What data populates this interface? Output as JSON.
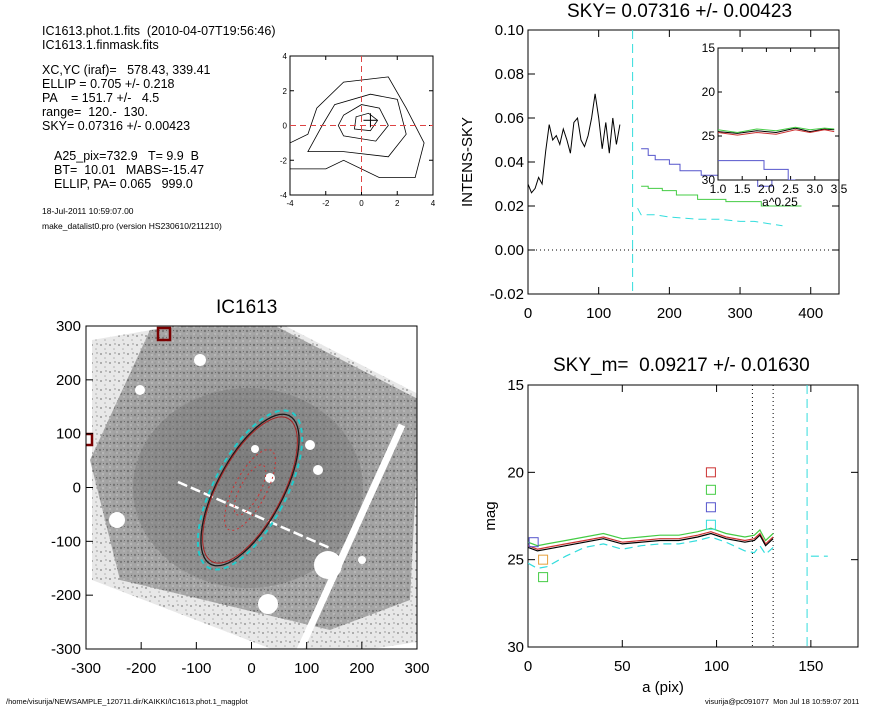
{
  "header": {
    "file_line": "IC1613.phot.1.fits  (2010-04-07T19:56:46)",
    "mask_line": "IC1613.1.finmask.fits",
    "params": [
      "XC,YC (iraf)=   578.43, 339.41",
      "ELLIP = 0.705 +/- 0.218",
      "PA    = 151.7 +/-   4.5",
      "range=  120.-  130.",
      "SKY= 0.07316 +/- 0.00423"
    ],
    "results": [
      "A25_pix=732.9   T= 9.9  B",
      "BT=  10.01   MABS=-15.47",
      "ELLIP, PA= 0.065   999.0"
    ],
    "date": "18-Jul-2011 10:59:07.00",
    "program": "make_datalist0.pro (version HS230610/211210)"
  },
  "footer": {
    "left": "/home/visurija/NEWSAMPLE_120711.dir/KAIKKI/IC1613.phot.1_magplot",
    "right": "visurija@pc091077  Mon Jul 18 10:59:07 2011"
  },
  "colors": {
    "cyan": "#33dddd",
    "green": "#44cc44",
    "blue": "#5555cc",
    "red": "#cc3333",
    "black": "#000000"
  },
  "chart_data": [
    {
      "id": "contour",
      "type": "contour",
      "xticks": [
        "-4",
        "-2",
        "0",
        "2",
        "4"
      ],
      "yticks": [
        "-4",
        "-2",
        "0",
        "2",
        "4"
      ],
      "xlim": [
        -4,
        4
      ],
      "ylim": [
        -4,
        4
      ],
      "contours": [
        [
          [
            -4,
            -2.5
          ],
          [
            -2,
            -2.5
          ],
          [
            -1,
            -2
          ],
          [
            1,
            -3
          ],
          [
            3,
            -3
          ],
          [
            3.5,
            -1
          ],
          [
            2.5,
            1
          ],
          [
            1.5,
            2.8
          ],
          [
            -1,
            2.5
          ],
          [
            -2.5,
            1
          ],
          [
            -3,
            -0.5
          ],
          [
            -4,
            -1
          ]
        ],
        [
          [
            -3,
            -1.5
          ],
          [
            -1,
            -1.5
          ],
          [
            1.5,
            -1.8
          ],
          [
            2.5,
            -0.5
          ],
          [
            2,
            1.5
          ],
          [
            0.5,
            1.8
          ],
          [
            -1.5,
            1.2
          ],
          [
            -2.2,
            0
          ]
        ],
        [
          [
            -1,
            -0.6
          ],
          [
            0.8,
            -0.9
          ],
          [
            1.5,
            0
          ],
          [
            1,
            1
          ],
          [
            0,
            1.2
          ],
          [
            -1,
            0.6
          ],
          [
            -1.3,
            0
          ]
        ],
        [
          [
            -0.4,
            -0.2
          ],
          [
            0.5,
            -0.3
          ],
          [
            0.9,
            0.3
          ],
          [
            0.4,
            0.7
          ],
          [
            -0.3,
            0.5
          ]
        ]
      ],
      "cross": [
        0.5,
        0.3
      ]
    },
    {
      "id": "sky-profile",
      "type": "line",
      "title": "SKY= 0.07316 +/- 0.00423",
      "ylabel": "INTENS-SKY",
      "xlim": [
        0,
        440
      ],
      "ylim": [
        -0.02,
        0.1
      ],
      "xticks": [
        "0",
        "100",
        "200",
        "300",
        "400"
      ],
      "yticks": [
        "-0.02",
        "0.00",
        "0.02",
        "0.04",
        "0.06",
        "0.08",
        "0.10"
      ],
      "series": [
        {
          "color": "black",
          "style": "solid",
          "x": [
            0,
            5,
            10,
            15,
            20,
            25,
            30,
            35,
            40,
            45,
            50,
            55,
            60,
            65,
            70,
            75,
            80,
            85,
            90,
            95,
            100,
            105,
            110,
            115,
            120,
            125,
            130
          ],
          "y": [
            0.03,
            0.026,
            0.028,
            0.033,
            0.03,
            0.045,
            0.057,
            0.05,
            0.052,
            0.048,
            0.055,
            0.05,
            0.044,
            0.058,
            0.06,
            0.05,
            0.047,
            0.052,
            0.06,
            0.071,
            0.06,
            0.046,
            0.058,
            0.044,
            0.06,
            0.048,
            0.057
          ]
        },
        {
          "color": "blue",
          "style": "step",
          "x": [
            160,
            170,
            180,
            200,
            215,
            245,
            280,
            325,
            345
          ],
          "y": [
            0.046,
            0.043,
            0.041,
            0.039,
            0.036,
            0.034,
            0.034,
            0.029,
            0.04
          ]
        },
        {
          "color": "green",
          "style": "step",
          "x": [
            160,
            170,
            190,
            210,
            240,
            280,
            320,
            330,
            370
          ],
          "y": [
            0.029,
            0.028,
            0.027,
            0.025,
            0.023,
            0.022,
            0.022,
            0.02,
            0.02
          ]
        },
        {
          "color": "cyan",
          "style": "dashed",
          "x": [
            155,
            160,
            180,
            200,
            240,
            270,
            300,
            320,
            340,
            360
          ],
          "y": [
            0.019,
            0.016,
            0.016,
            0.015,
            0.014,
            0.014,
            0.013,
            0.013,
            0.012,
            0.011
          ]
        }
      ],
      "sky_line": 0.0,
      "vline": 148,
      "inset": {
        "xlabel": "a^0.25",
        "xlim": [
          1.0,
          3.5
        ],
        "ylim": [
          15,
          30
        ],
        "xticks": [
          "1.0",
          "1.5",
          "2.0",
          "2.5",
          "3.0",
          "3.5"
        ],
        "yticks": [
          "15",
          "20",
          "25",
          "30"
        ],
        "series": [
          {
            "color": "black",
            "x": [
              1.0,
              1.4,
              1.8,
              2.2,
              2.6,
              2.9,
              3.2,
              3.4
            ],
            "y": [
              24.5,
              24.7,
              24.4,
              24.6,
              24.1,
              24.5,
              24.2,
              24.3
            ]
          },
          {
            "color": "red",
            "x": [
              1.0,
              1.4,
              1.8,
              2.2,
              2.6,
              2.9,
              3.2,
              3.4
            ],
            "y": [
              24.6,
              24.9,
              24.6,
              24.8,
              24.3,
              24.6,
              24.3,
              24.5
            ]
          },
          {
            "color": "green",
            "x": [
              1.0,
              1.4,
              1.8,
              2.2,
              2.6,
              2.9,
              3.2,
              3.4
            ],
            "y": [
              24.3,
              24.6,
              24.2,
              24.4,
              24.0,
              24.3,
              24.1,
              24.2
            ]
          },
          {
            "color": "blue",
            "x": [
              1.0,
              1.65,
              1.65,
              1.95,
              1.95,
              2.45,
              2.45,
              2.6
            ],
            "y": [
              27.8,
              27.8,
              27.8,
              27.8,
              28.8,
              28.8,
              30.0,
              30.0
            ]
          }
        ]
      }
    },
    {
      "id": "galaxy-image",
      "type": "image",
      "title": "IC1613",
      "xlim": [
        -300,
        300
      ],
      "ylim": [
        -300,
        300
      ],
      "xticks": [
        "-300",
        "-200",
        "-100",
        "0",
        "100",
        "200",
        "300"
      ],
      "yticks": [
        "-300",
        "-200",
        "-100",
        "0",
        "100",
        "200",
        "300"
      ]
    },
    {
      "id": "mag-profile",
      "type": "line",
      "title": "SKY_m=  0.09217 +/- 0.01630",
      "xlabel": "a (pix)",
      "ylabel": "mag",
      "xlim": [
        0,
        175
      ],
      "ylim": [
        30,
        15
      ],
      "xticks": [
        "0",
        "50",
        "100",
        "150"
      ],
      "yticks": [
        "15",
        "20",
        "25",
        "30"
      ],
      "series": [
        {
          "color": "green",
          "x": [
            0,
            5,
            10,
            20,
            30,
            40,
            50,
            60,
            70,
            80,
            90,
            97,
            105,
            115,
            120,
            123,
            126,
            130
          ],
          "y": [
            24.0,
            24.2,
            24.1,
            23.9,
            23.7,
            23.5,
            23.8,
            23.7,
            23.6,
            23.6,
            23.4,
            23.2,
            23.5,
            23.7,
            23.6,
            23.3,
            23.9,
            23.5
          ]
        },
        {
          "color": "red",
          "x": [
            0,
            5,
            10,
            20,
            30,
            40,
            50,
            60,
            70,
            80,
            90,
            97,
            105,
            115,
            120,
            123,
            126,
            130
          ],
          "y": [
            24.2,
            24.4,
            24.3,
            24.1,
            23.9,
            23.7,
            24.0,
            23.9,
            23.8,
            23.8,
            23.6,
            23.4,
            23.7,
            23.9,
            23.8,
            23.5,
            24.1,
            23.7
          ]
        },
        {
          "color": "black",
          "x": [
            0,
            5,
            10,
            20,
            30,
            40,
            50,
            60,
            70,
            80,
            90,
            97,
            105,
            115,
            120,
            123,
            126,
            130
          ],
          "y": [
            24.3,
            24.5,
            24.4,
            24.2,
            24.0,
            23.8,
            24.1,
            24.0,
            23.9,
            23.9,
            23.7,
            23.5,
            23.8,
            24.0,
            23.9,
            23.6,
            24.2,
            23.8
          ]
        },
        {
          "color": "cyan",
          "style": "dashed",
          "x": [
            0,
            5,
            10,
            20,
            30,
            40,
            50,
            60,
            70,
            80,
            90,
            97,
            105,
            115,
            120,
            123,
            126,
            130
          ],
          "y": [
            25.2,
            25.5,
            25.4,
            24.8,
            24.3,
            24.1,
            24.4,
            24.2,
            24.1,
            24.1,
            23.9,
            23.7,
            24.0,
            24.5,
            24.6,
            24.2,
            24.7,
            24.3
          ]
        },
        {
          "color": "cyan",
          "style": "dashed",
          "x": [
            150,
            159
          ],
          "y": [
            24.8,
            24.8
          ]
        }
      ],
      "markers": [
        {
          "color": "red",
          "x": 97,
          "y": 20.0
        },
        {
          "color": "green",
          "x": 97,
          "y": 21.0
        },
        {
          "color": "blue",
          "x": 97,
          "y": 22.0
        },
        {
          "color": "cyan",
          "x": 97,
          "y": 23.0
        },
        {
          "color": "blue",
          "x": 3,
          "y": 24.0
        },
        {
          "color": "orange",
          "x": 8,
          "y": 25.0
        },
        {
          "color": "green",
          "x": 8,
          "y": 26.0
        }
      ],
      "vlines_dotted": [
        119,
        130
      ],
      "vline_dashed": 148
    }
  ]
}
